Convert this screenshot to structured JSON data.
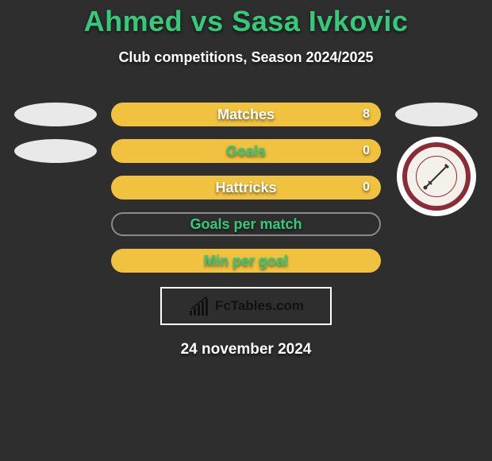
{
  "title": "Ahmed vs Sasa Ivkovic",
  "subtitle": "Club competitions, Season 2024/2025",
  "title_color": "#36c97b",
  "background_color": "#2e2e2e",
  "ellipse_color": "#e9e9e9",
  "logo_ring_color": "#8b2b36",
  "bar_border_color": "#8a8a8a",
  "fctables_label": "FcTables.com",
  "date_text": "24 november 2024",
  "rows": [
    {
      "label": "Matches",
      "value": "8",
      "bg": "#f0c23f",
      "text": "#ffffff",
      "filled": true,
      "show_value": true,
      "left_ellipse": true,
      "right_ellipse": true
    },
    {
      "label": "Goals",
      "value": "0",
      "bg": "#f0c23f",
      "text": "#36c97b",
      "filled": true,
      "show_value": true,
      "left_ellipse": true,
      "right_ellipse": false
    },
    {
      "label": "Hattricks",
      "value": "0",
      "bg": "#f0c23f",
      "text": "#ffffff",
      "filled": true,
      "show_value": true,
      "left_ellipse": false,
      "right_ellipse": false
    },
    {
      "label": "Goals per match",
      "value": "",
      "bg": "transparent",
      "text": "#36c97b",
      "filled": false,
      "show_value": false,
      "left_ellipse": false,
      "right_ellipse": false
    },
    {
      "label": "Min per goal",
      "value": "",
      "bg": "#f0c23f",
      "text": "#36c97b",
      "filled": true,
      "show_value": false,
      "left_ellipse": false,
      "right_ellipse": false
    }
  ],
  "fctables_chart_bars": [
    6,
    10,
    14,
    18,
    22
  ]
}
